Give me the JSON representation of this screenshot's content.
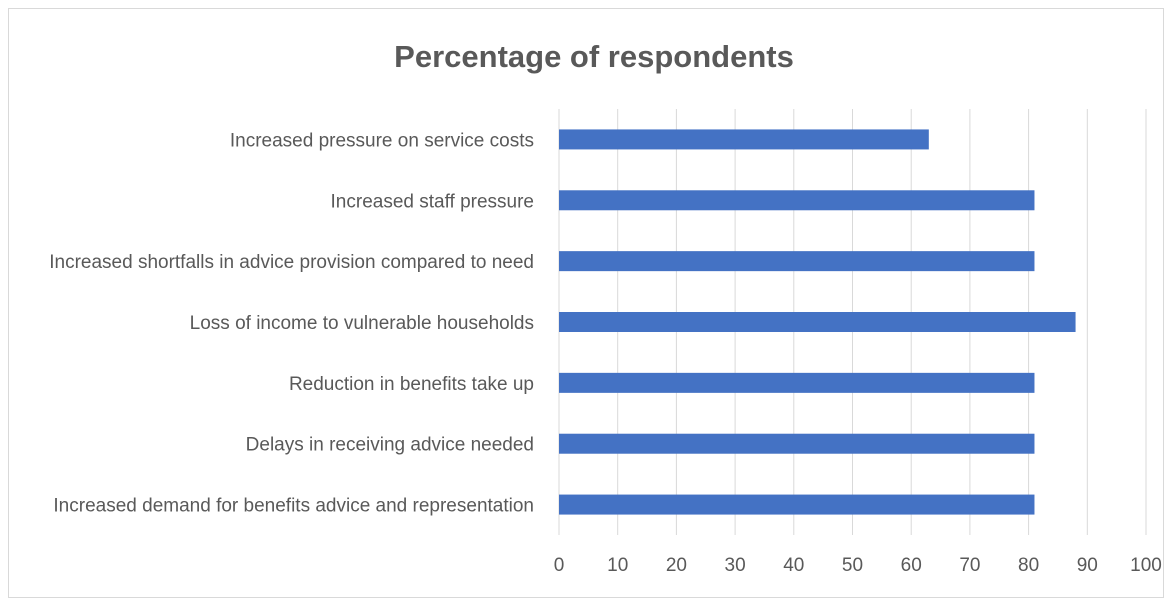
{
  "chart_data": {
    "type": "bar",
    "orientation": "horizontal",
    "title": "Percentage of respondents",
    "categories": [
      "Increased pressure on service costs",
      "Increased staff pressure",
      "Increased shortfalls in advice provision compared to need",
      "Loss of income to vulnerable households",
      "Reduction in benefits take up",
      "Delays in receiving advice needed",
      "Increased demand for benefits advice and representation"
    ],
    "values": [
      63,
      81,
      81,
      88,
      81,
      81,
      81
    ],
    "xlim": [
      0,
      100
    ],
    "xticks": [
      "0",
      "10",
      "20",
      "30",
      "40",
      "50",
      "60",
      "70",
      "80",
      "90",
      "100"
    ],
    "grid": "vertical",
    "legend": "none",
    "bar_color": "#4472c4"
  }
}
